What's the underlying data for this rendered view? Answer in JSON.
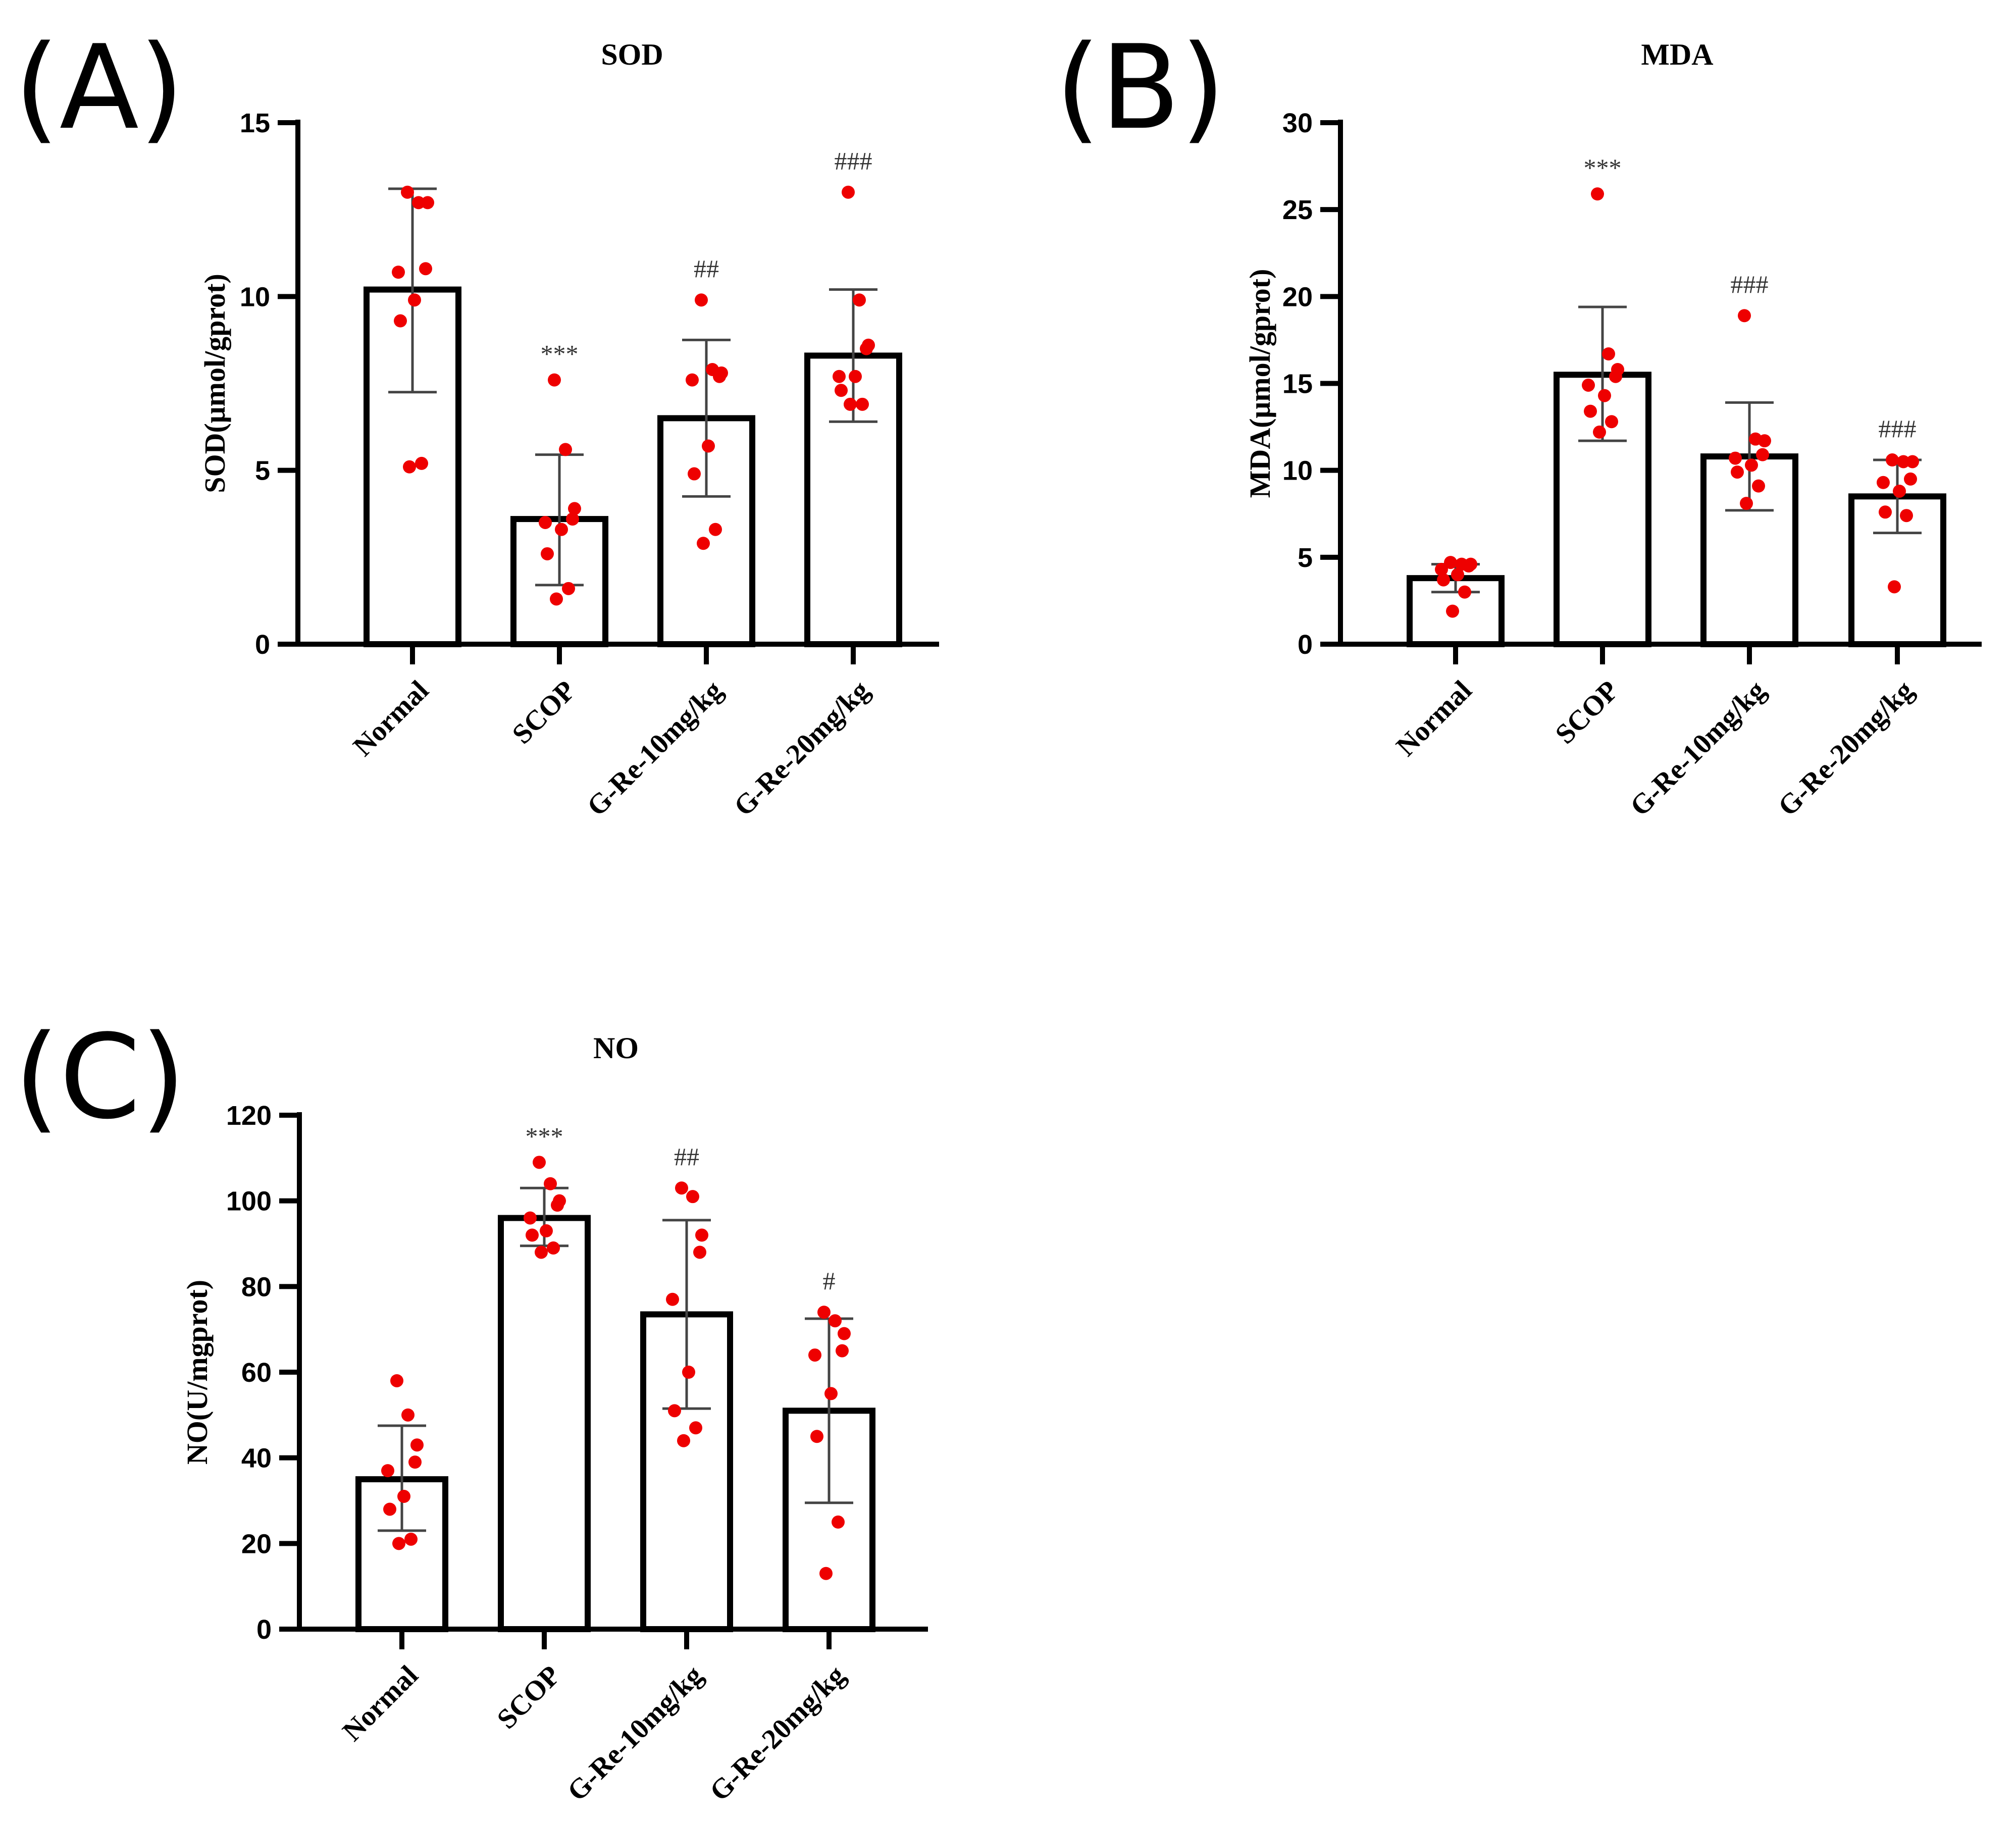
{
  "panel_labels": [
    "(A)",
    "(B)",
    "(C)"
  ],
  "chart_data": [
    {
      "type": "bar",
      "title": "SOD",
      "ylabel": "SOD(μmol/gprot)",
      "xlabel": "",
      "categories": [
        "Normal",
        "SCOP",
        "G-Re-10mg/kg",
        "G-Re-20mg/kg"
      ],
      "values": [
        10.2,
        3.6,
        6.5,
        8.3
      ],
      "error_low": [
        7.25,
        1.7,
        4.25,
        6.4
      ],
      "error_high": [
        13.1,
        5.45,
        8.75,
        10.2
      ],
      "points": [
        [
          13.0,
          12.7,
          12.7,
          10.8,
          10.7,
          9.9,
          9.3,
          5.2,
          5.1
        ],
        [
          7.6,
          5.6,
          3.9,
          3.6,
          3.5,
          3.3,
          2.6,
          1.6,
          1.3
        ],
        [
          9.9,
          7.9,
          7.8,
          7.7,
          7.6,
          5.7,
          4.9,
          3.3,
          2.9
        ],
        [
          13.0,
          9.9,
          8.6,
          8.5,
          7.7,
          7.7,
          7.3,
          6.9,
          6.9
        ]
      ],
      "significance": [
        "",
        "***",
        "##",
        "###"
      ],
      "yticks": [
        0,
        5,
        10,
        15
      ],
      "ylim": [
        0,
        15
      ]
    },
    {
      "type": "bar",
      "title": "MDA",
      "ylabel": "MDA(μmol/gprot)",
      "xlabel": "",
      "categories": [
        "Normal",
        "SCOP",
        "G-Re-10mg/kg",
        "G-Re-20mg/kg"
      ],
      "values": [
        3.8,
        15.5,
        10.8,
        8.5
      ],
      "error_low": [
        3.0,
        11.7,
        7.7,
        6.4
      ],
      "error_high": [
        4.6,
        19.4,
        13.9,
        10.6
      ],
      "points": [
        [
          4.7,
          4.6,
          4.6,
          4.5,
          4.3,
          4.0,
          3.7,
          3.0,
          1.9
        ],
        [
          25.9,
          16.7,
          15.8,
          15.4,
          14.9,
          14.3,
          13.4,
          12.8,
          12.2
        ],
        [
          18.9,
          11.8,
          11.7,
          10.9,
          10.7,
          10.3,
          9.9,
          9.1,
          8.1
        ],
        [
          10.6,
          10.5,
          10.5,
          9.5,
          9.3,
          8.8,
          7.6,
          7.4,
          3.3
        ]
      ],
      "significance": [
        "",
        "***",
        "###",
        "###"
      ],
      "yticks": [
        0,
        5,
        10,
        15,
        20,
        25,
        30
      ],
      "ylim": [
        0,
        30
      ]
    },
    {
      "type": "bar",
      "title": "NO",
      "ylabel": "NO(U/mgprot)",
      "xlabel": "",
      "categories": [
        "Normal",
        "SCOP",
        "G-Re-10mg/kg",
        "G-Re-20mg/kg"
      ],
      "values": [
        35,
        96,
        73.5,
        51
      ],
      "error_low": [
        23,
        89.5,
        51.5,
        29.5
      ],
      "error_high": [
        47.5,
        103,
        95.5,
        72.5
      ],
      "points": [
        [
          58,
          50,
          43,
          39,
          37,
          31,
          28,
          21,
          20
        ],
        [
          109,
          104,
          100,
          99,
          96,
          93,
          92,
          89,
          88
        ],
        [
          103,
          101,
          92,
          88,
          77,
          60,
          51,
          47,
          44
        ],
        [
          74,
          72,
          69,
          65,
          64,
          55,
          45,
          25,
          13
        ]
      ],
      "significance": [
        "",
        "***",
        "##",
        "#"
      ],
      "yticks": [
        0,
        20,
        40,
        60,
        80,
        100,
        120
      ],
      "ylim": [
        0,
        120
      ]
    }
  ]
}
